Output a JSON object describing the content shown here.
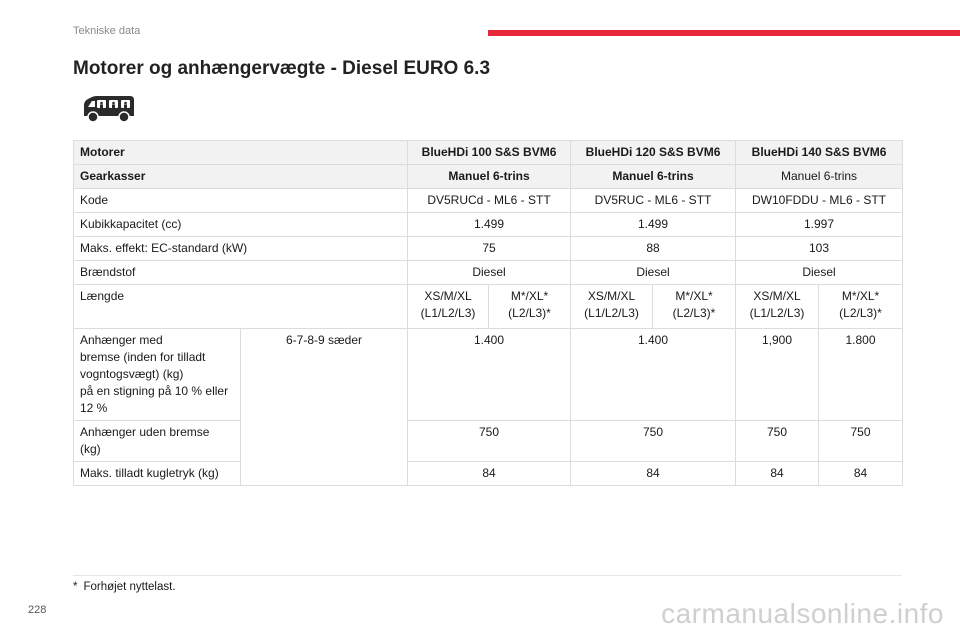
{
  "header": {
    "section": "Tekniske data",
    "accent_color": "#e8283a"
  },
  "title": "Motorer og anhængervægte - Diesel EURO 6.3",
  "vehicle_icon": "van-with-passengers-icon",
  "table": {
    "engine_label": "Motorer",
    "engines": [
      "BlueHDi 100 S&S BVM6",
      "BlueHDi 120 S&S BVM6",
      "BlueHDi 140 S&S BVM6"
    ],
    "gearbox_label": "Gearkasser",
    "gearboxes": [
      "Manuel 6-trins",
      "Manuel 6-trins",
      "Manuel 6-trins"
    ],
    "code_label": "Kode",
    "codes": [
      "DV5RUCd - ML6 - STT",
      "DV5RUC - ML6 - STT",
      "DW10FDDU - ML6 - STT"
    ],
    "displacement_label": "Kubikkapacitet (cc)",
    "displacements": [
      "1.499",
      "1.499",
      "1.997"
    ],
    "power_label": "Maks. effekt: EC-standard (kW)",
    "powers": [
      "75",
      "88",
      "103"
    ],
    "fuel_label": "Brændstof",
    "fuels": [
      "Diesel",
      "Diesel",
      "Diesel"
    ],
    "length_label": "Længde",
    "lengths": [
      {
        "line1": "XS/M/XL",
        "line2": "(L1/L2/L3)"
      },
      {
        "line1": "M*/XL*",
        "line2": "(L2/L3)*"
      },
      {
        "line1": "XS/M/XL",
        "line2": "(L1/L2/L3)"
      },
      {
        "line1": "M*/XL*",
        "line2": "(L2/L3)*"
      },
      {
        "line1": "XS/M/XL",
        "line2": "(L1/L2/L3)"
      },
      {
        "line1": "M*/XL*",
        "line2": "(L2/L3)*"
      }
    ],
    "braked_label_lines": [
      "Anhænger med",
      "bremse (inden for tilladt",
      "vogntogsvægt) (kg)",
      "på en stigning på 10 % eller",
      "12 %"
    ],
    "seats_label": "6-7-8-9 sæder",
    "braked": [
      "1.400",
      "1.400",
      "1,900",
      "1.800"
    ],
    "unbraked_label_lines": [
      "Anhænger uden bremse",
      "(kg)"
    ],
    "unbraked": [
      "750",
      "750",
      "750",
      "750"
    ],
    "noseweight_label": "Maks. tilladt kugletryk (kg)",
    "noseweights": [
      "84",
      "84",
      "84",
      "84"
    ]
  },
  "footnote": {
    "marker": "*",
    "text": "Forhøjet nyttelast."
  },
  "page_number": "228",
  "watermark": "carmanualsonline.info"
}
